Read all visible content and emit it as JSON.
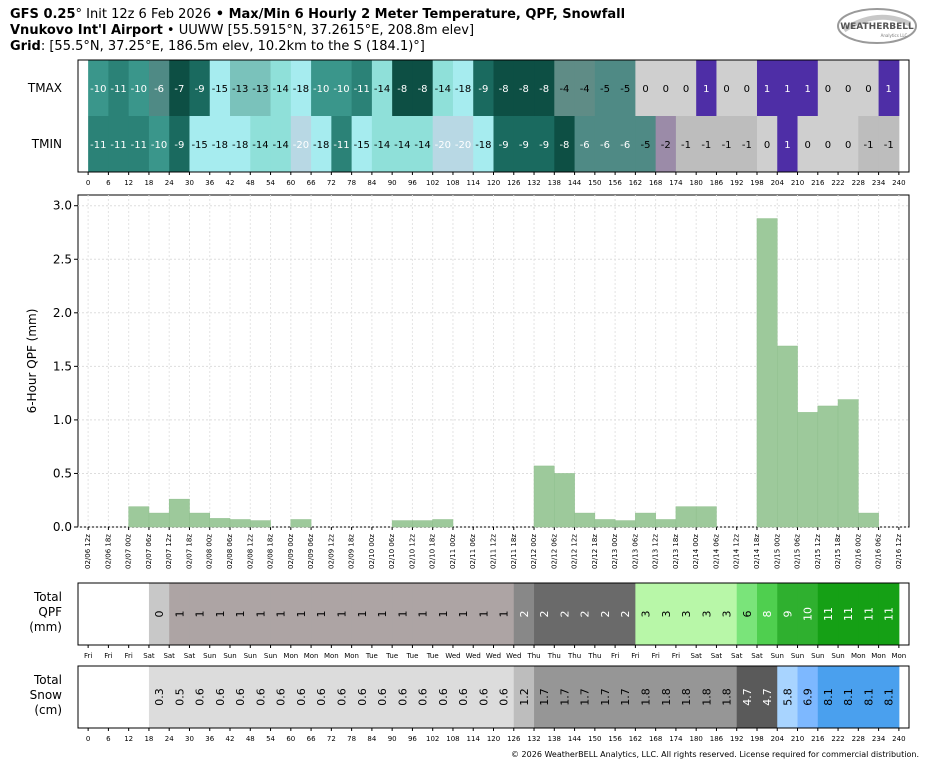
{
  "header": {
    "model": "GFS 0.25",
    "deg": "°",
    "init": " Init 12z 6 Feb 2026",
    "bullet": " • ",
    "product": "Max/Min 6 Hourly 2 Meter Temperature,  QPF,  Snowfall",
    "station": "Vnukovo Int'l Airport",
    "station_info": " • UUWW [55.5915°N, 37.2615°E, 208.8m elev]",
    "grid_label": "Grid",
    "grid_info": ": [55.5°N, 37.25°E, 186.5m elev, 10.2km to the S (184.1)°]"
  },
  "logo": {
    "text": "WEATHERBELL",
    "sub": "Analytics LLC"
  },
  "copyright": "© 2026 WeatherBELL Analytics, LLC. All rights reserved. License required for commercial distribution.",
  "colors": {
    "qpf_bar": "#9dc99b",
    "tmax_tmin_scale": [
      "#0d4f44",
      "#1a6a5f",
      "#2b8277",
      "#3a968b",
      "#5aa8a0",
      "#7ac2bb",
      "#8fe0d9",
      "#a6ecef",
      "#b8d8e4",
      "#cfcfcf",
      "#bdbdbd",
      "#9b8ba8",
      "#4e2ea6",
      "#3a2598"
    ],
    "total_qpf": {
      "0": "#c8c8c8",
      "1": "#ada4a4",
      "2": "#6a6a6a",
      "2b": "#888888",
      "3": "#b8f7a8",
      "6": "#7ae47a",
      "8": "#4fcf4f",
      "9": "#2fb02f",
      "10": "#2fb02f",
      "11": "#15a015"
    },
    "total_snow": {
      "low": "#dcdcdc",
      "1.2": "#bdbdbd",
      "1.7": "#969696",
      "1.8": "#969696",
      "4.7": "#5a5a5a",
      "5.8": "#a8d4ff",
      "6.9": "#7db8ff",
      "8.1": "#4aa0ee"
    }
  },
  "temp_panel": {
    "rows": [
      "TMAX",
      "TMIN"
    ],
    "hours": [
      0,
      6,
      12,
      18,
      24,
      30,
      36,
      42,
      48,
      54,
      60,
      66,
      72,
      78,
      84,
      90,
      96,
      102,
      108,
      114,
      120,
      126,
      132,
      138,
      144,
      150,
      156,
      162,
      168,
      174,
      180,
      186,
      192,
      198,
      204,
      210,
      216,
      222,
      228,
      234,
      240
    ],
    "tmax": [
      -10,
      -11,
      -10,
      -6,
      -7,
      -9,
      -15,
      -13,
      -13,
      -14,
      -18,
      -10,
      -10,
      -11,
      -14,
      -8,
      -8,
      -14,
      -18,
      -9,
      -8,
      -8,
      -8,
      -4,
      -4,
      -5,
      -5,
      0,
      0,
      0,
      1,
      0,
      0,
      1,
      1,
      1,
      0,
      0,
      0,
      1
    ],
    "tmin": [
      -11,
      -11,
      -11,
      -10,
      -9,
      -15,
      -18,
      -18,
      -14,
      -14,
      -20,
      -18,
      -11,
      -15,
      -14,
      -14,
      -14,
      -20,
      -20,
      -18,
      -9,
      -9,
      -9,
      -8,
      -6,
      -6,
      -6,
      -5,
      -2,
      -1,
      -1,
      -1,
      -1,
      0,
      1,
      0,
      0,
      0,
      -1,
      -1
    ]
  },
  "chart_data": {
    "type": "bar",
    "ylabel": "6-Hour QPF (mm)",
    "ylim": [
      0,
      3.1
    ],
    "yticks": [
      0.0,
      0.5,
      1.0,
      1.5,
      2.0,
      2.5,
      3.0
    ],
    "grid": true,
    "categories": [
      "02/06 12z",
      "02/06 18z",
      "02/07 00z",
      "02/07 06z",
      "02/07 12z",
      "02/07 18z",
      "02/08 00z",
      "02/08 06z",
      "02/08 12z",
      "02/08 18z",
      "02/09 00z",
      "02/09 06z",
      "02/09 12z",
      "02/09 18z",
      "02/10 00z",
      "02/10 06z",
      "02/10 12z",
      "02/10 18z",
      "02/11 00z",
      "02/11 06z",
      "02/11 12z",
      "02/11 18z",
      "02/12 00z",
      "02/12 06z",
      "02/12 12z",
      "02/12 18z",
      "02/13 00z",
      "02/13 06z",
      "02/13 12z",
      "02/13 18z",
      "02/14 00z",
      "02/14 06z",
      "02/14 12z",
      "02/14 18z",
      "02/15 00z",
      "02/15 06z",
      "02/15 12z",
      "02/15 18z",
      "02/16 00z",
      "02/16 06z",
      "02/16 12z"
    ],
    "values": [
      0,
      0,
      0.19,
      0.13,
      0.26,
      0.13,
      0.08,
      0.07,
      0.06,
      0,
      0.07,
      0,
      0,
      0,
      0,
      0.06,
      0.06,
      0.07,
      0,
      0,
      0,
      0,
      0.57,
      0.5,
      0.13,
      0.07,
      0.06,
      0.13,
      0.07,
      0.19,
      0.19,
      0,
      0,
      2.88,
      1.69,
      1.07,
      1.13,
      1.19,
      0.13,
      0,
      0
    ]
  },
  "total_qpf": {
    "label_lines": [
      "Total",
      "QPF",
      "(mm)"
    ],
    "days": [
      "Fri",
      "Fri",
      "Fri",
      "Sat",
      "Sat",
      "Sat",
      "Sun",
      "Sun",
      "Sun",
      "Sun",
      "Mon",
      "Mon",
      "Mon",
      "Mon",
      "Tue",
      "Tue",
      "Tue",
      "Tue",
      "Wed",
      "Wed",
      "Wed",
      "Wed",
      "Thu",
      "Thu",
      "Thu",
      "Thu",
      "Fri",
      "Fri",
      "Fri",
      "Fri",
      "Sat",
      "Sat",
      "Sat",
      "Sat",
      "Sun",
      "Sun",
      "Sun",
      "Sun",
      "Mon",
      "Mon",
      "Mon"
    ],
    "values": [
      "",
      "",
      "",
      "0",
      "1",
      "1",
      "1",
      "1",
      "1",
      "1",
      "1",
      "1",
      "1",
      "1",
      "1",
      "1",
      "1",
      "1",
      "1",
      "1",
      "1",
      "2",
      "2",
      "2",
      "2",
      "2",
      "2",
      "3",
      "3",
      "3",
      "3",
      "3",
      "6",
      "8",
      "9",
      "10",
      "11",
      "11",
      "11",
      "11"
    ]
  },
  "total_snow": {
    "label_lines": [
      "Total",
      "Snow",
      "(cm)"
    ],
    "hours": [
      0,
      6,
      12,
      18,
      24,
      30,
      36,
      42,
      48,
      54,
      60,
      66,
      72,
      78,
      84,
      90,
      96,
      102,
      108,
      114,
      120,
      126,
      132,
      138,
      144,
      150,
      156,
      162,
      168,
      174,
      180,
      186,
      192,
      198,
      204,
      210,
      216,
      222,
      228,
      234,
      240
    ],
    "values": [
      "",
      "",
      "",
      "0.3",
      "0.5",
      "0.6",
      "0.6",
      "0.6",
      "0.6",
      "0.6",
      "0.6",
      "0.6",
      "0.6",
      "0.6",
      "0.6",
      "0.6",
      "0.6",
      "0.6",
      "0.6",
      "0.6",
      "0.6",
      "1.2",
      "1.7",
      "1.7",
      "1.7",
      "1.7",
      "1.7",
      "1.8",
      "1.8",
      "1.8",
      "1.8",
      "1.8",
      "4.7",
      "4.7",
      "5.8",
      "6.9",
      "8.1",
      "8.1",
      "8.1",
      "8.1"
    ]
  }
}
